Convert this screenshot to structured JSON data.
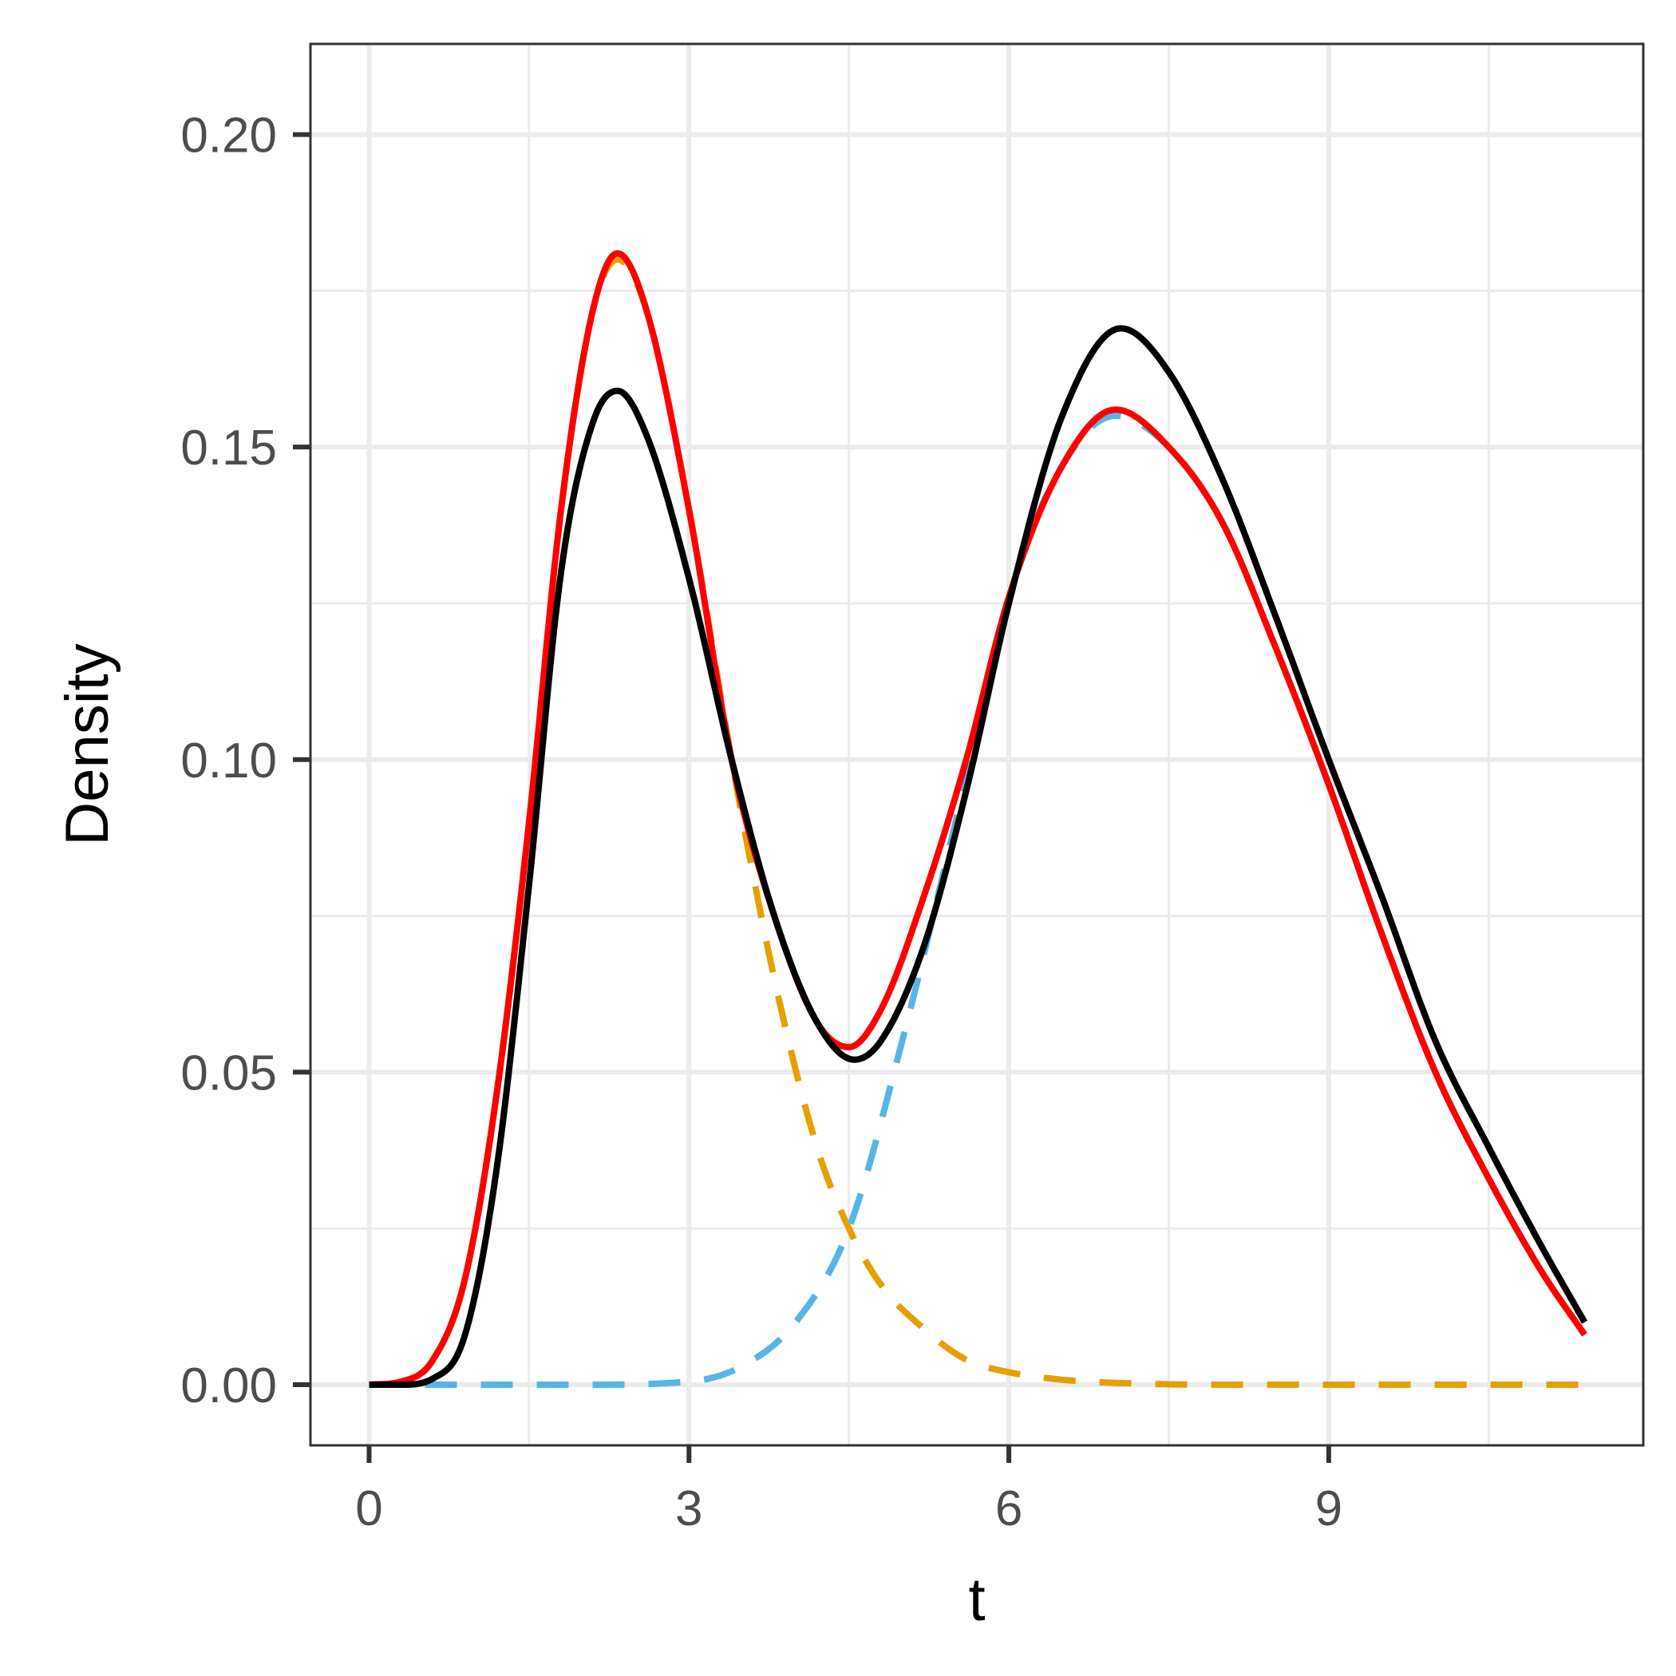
{
  "chart_data": {
    "type": "line",
    "title": "",
    "xlabel": "t",
    "ylabel": "Density",
    "xlim": [
      -0.55,
      11.95
    ],
    "ylim": [
      -0.0097,
      0.2145
    ],
    "x_ticks": [
      0,
      3,
      6,
      9
    ],
    "x_tick_labels": [
      "0",
      "3",
      "6",
      "9"
    ],
    "x_minor_ticks": [
      1.5,
      4.5,
      7.5,
      10.5
    ],
    "y_ticks": [
      0.0,
      0.05,
      0.1,
      0.15,
      0.2
    ],
    "y_tick_labels": [
      "0.00",
      "0.05",
      "0.10",
      "0.15",
      "0.20"
    ],
    "y_minor_ticks": [
      0.025,
      0.075,
      0.125,
      0.175
    ],
    "grid": true,
    "legend": "none",
    "x_range": [
      0,
      11.4
    ],
    "series": [
      {
        "color": "#E69F00",
        "style": "dashed",
        "points": [
          [
            0,
            0.0
          ],
          [
            0.3,
            0.0003
          ],
          [
            0.6,
            0.004
          ],
          [
            0.9,
            0.017
          ],
          [
            1.2,
            0.047
          ],
          [
            1.5,
            0.09
          ],
          [
            1.8,
            0.14
          ],
          [
            2.1,
            0.172
          ],
          [
            2.33,
            0.18
          ],
          [
            2.6,
            0.172
          ],
          [
            3.0,
            0.14
          ],
          [
            3.4,
            0.1
          ],
          [
            3.8,
            0.065
          ],
          [
            4.2,
            0.038
          ],
          [
            4.5,
            0.025
          ],
          [
            4.8,
            0.016
          ],
          [
            5.2,
            0.009
          ],
          [
            5.6,
            0.004
          ],
          [
            6.0,
            0.002
          ],
          [
            6.5,
            0.0008
          ],
          [
            7.0,
            0.0003
          ],
          [
            8.0,
            0.0
          ],
          [
            11.4,
            0.0
          ]
        ]
      },
      {
        "color": "#56B4E9",
        "style": "dashed",
        "points": [
          [
            0,
            0.0
          ],
          [
            2.0,
            0.0
          ],
          [
            3.0,
            0.0005
          ],
          [
            3.5,
            0.003
          ],
          [
            4.0,
            0.01
          ],
          [
            4.5,
            0.025
          ],
          [
            5.0,
            0.055
          ],
          [
            5.5,
            0.09
          ],
          [
            6.0,
            0.126
          ],
          [
            6.5,
            0.147
          ],
          [
            7.0,
            0.155
          ],
          [
            7.5,
            0.15
          ],
          [
            8.0,
            0.138
          ],
          [
            8.5,
            0.118
          ],
          [
            9.0,
            0.096
          ],
          [
            9.5,
            0.072
          ],
          [
            10.0,
            0.05
          ],
          [
            10.5,
            0.033
          ],
          [
            11.0,
            0.018
          ],
          [
            11.4,
            0.008
          ]
        ]
      },
      {
        "color": "#FF0000",
        "style": "solid",
        "points": [
          [
            0,
            0.0
          ],
          [
            0.3,
            0.0005
          ],
          [
            0.6,
            0.004
          ],
          [
            0.9,
            0.017
          ],
          [
            1.2,
            0.047
          ],
          [
            1.5,
            0.09
          ],
          [
            1.8,
            0.14
          ],
          [
            2.1,
            0.172
          ],
          [
            2.33,
            0.181
          ],
          [
            2.6,
            0.172
          ],
          [
            3.0,
            0.14
          ],
          [
            3.4,
            0.1
          ],
          [
            3.8,
            0.075
          ],
          [
            4.2,
            0.058
          ],
          [
            4.5,
            0.054
          ],
          [
            4.8,
            0.06
          ],
          [
            5.2,
            0.078
          ],
          [
            5.6,
            0.1
          ],
          [
            6.0,
            0.126
          ],
          [
            6.5,
            0.147
          ],
          [
            7.0,
            0.156
          ],
          [
            7.5,
            0.15
          ],
          [
            8.0,
            0.138
          ],
          [
            8.5,
            0.118
          ],
          [
            9.0,
            0.096
          ],
          [
            9.5,
            0.072
          ],
          [
            10.0,
            0.05
          ],
          [
            10.5,
            0.033
          ],
          [
            11.0,
            0.018
          ],
          [
            11.4,
            0.008
          ]
        ]
      },
      {
        "color": "#000000",
        "style": "solid",
        "points": [
          [
            0,
            0.0
          ],
          [
            0.3,
            0.0
          ],
          [
            0.6,
            0.001
          ],
          [
            0.9,
            0.008
          ],
          [
            1.2,
            0.035
          ],
          [
            1.5,
            0.08
          ],
          [
            1.8,
            0.13
          ],
          [
            2.1,
            0.154
          ],
          [
            2.33,
            0.159
          ],
          [
            2.6,
            0.152
          ],
          [
            3.0,
            0.129
          ],
          [
            3.4,
            0.1
          ],
          [
            3.8,
            0.075
          ],
          [
            4.2,
            0.058
          ],
          [
            4.55,
            0.052
          ],
          [
            4.8,
            0.055
          ],
          [
            5.2,
            0.07
          ],
          [
            5.6,
            0.095
          ],
          [
            6.0,
            0.125
          ],
          [
            6.5,
            0.155
          ],
          [
            7.05,
            0.169
          ],
          [
            7.5,
            0.162
          ],
          [
            8.0,
            0.145
          ],
          [
            8.5,
            0.123
          ],
          [
            9.0,
            0.1
          ],
          [
            9.5,
            0.078
          ],
          [
            10.0,
            0.055
          ],
          [
            10.5,
            0.038
          ],
          [
            11.0,
            0.022
          ],
          [
            11.4,
            0.01
          ]
        ]
      }
    ]
  }
}
